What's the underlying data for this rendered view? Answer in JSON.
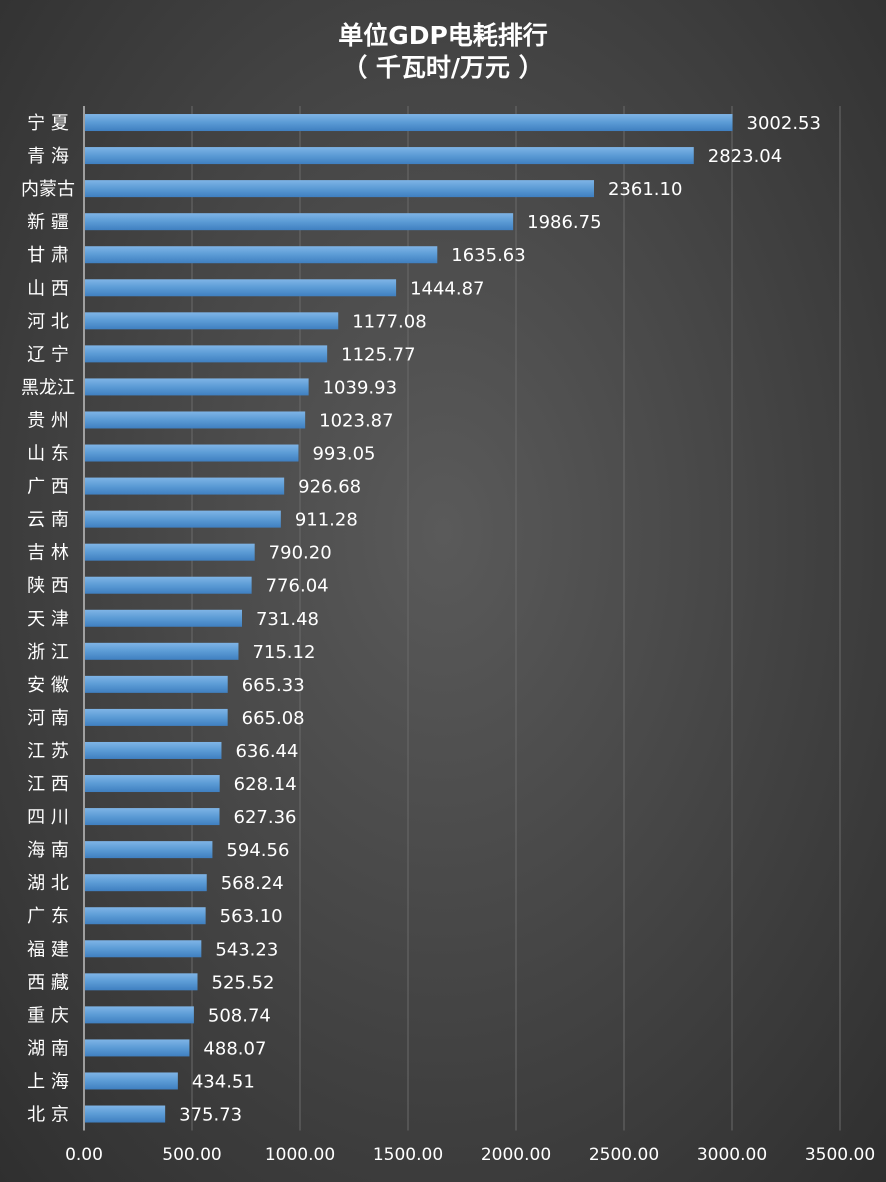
{
  "chart_data": {
    "type": "bar",
    "orientation": "horizontal",
    "title": "单位GDP电耗排行",
    "subtitle": "（ 千瓦时/万元 ）",
    "categories": [
      "宁 夏",
      "青 海",
      "内蒙古",
      "新 疆",
      "甘 肃",
      "山 西",
      "河 北",
      "辽 宁",
      "黑龙江",
      "贵 州",
      "山 东",
      "广 西",
      "云 南",
      "吉 林",
      "陕 西",
      "天 津",
      "浙 江",
      "安 徽",
      "河 南",
      "江 苏",
      "江 西",
      "四 川",
      "海 南",
      "湖 北",
      "广 东",
      "福 建",
      "西 藏",
      "重 庆",
      "湖 南",
      "上 海",
      "北 京"
    ],
    "values": [
      3002.53,
      2823.04,
      2361.1,
      1986.75,
      1635.63,
      1444.87,
      1177.08,
      1125.77,
      1039.93,
      1023.87,
      993.05,
      926.68,
      911.28,
      790.2,
      776.04,
      731.48,
      715.12,
      665.33,
      665.08,
      636.44,
      628.14,
      627.36,
      594.56,
      568.24,
      563.1,
      543.23,
      525.52,
      508.74,
      488.07,
      434.51,
      375.73
    ],
    "value_labels": [
      "3002.53",
      "2823.04",
      "2361.10",
      "1986.75",
      "1635.63",
      "1444.87",
      "1177.08",
      "1125.77",
      "1039.93",
      "1023.87",
      "993.05",
      "926.68",
      "911.28",
      "790.20",
      "776.04",
      "731.48",
      "715.12",
      "665.33",
      "665.08",
      "636.44",
      "628.14",
      "627.36",
      "594.56",
      "568.24",
      "563.10",
      "543.23",
      "525.52",
      "508.74",
      "488.07",
      "434.51",
      "375.73"
    ],
    "xlim": [
      0,
      3500
    ],
    "x_ticks": [
      "0.00",
      "500.00",
      "1000.00",
      "1500.00",
      "2000.00",
      "2500.00",
      "3000.00",
      "3500.00"
    ],
    "grid": true,
    "bar_color": "#5b9bd5",
    "background_color": "#474747"
  }
}
